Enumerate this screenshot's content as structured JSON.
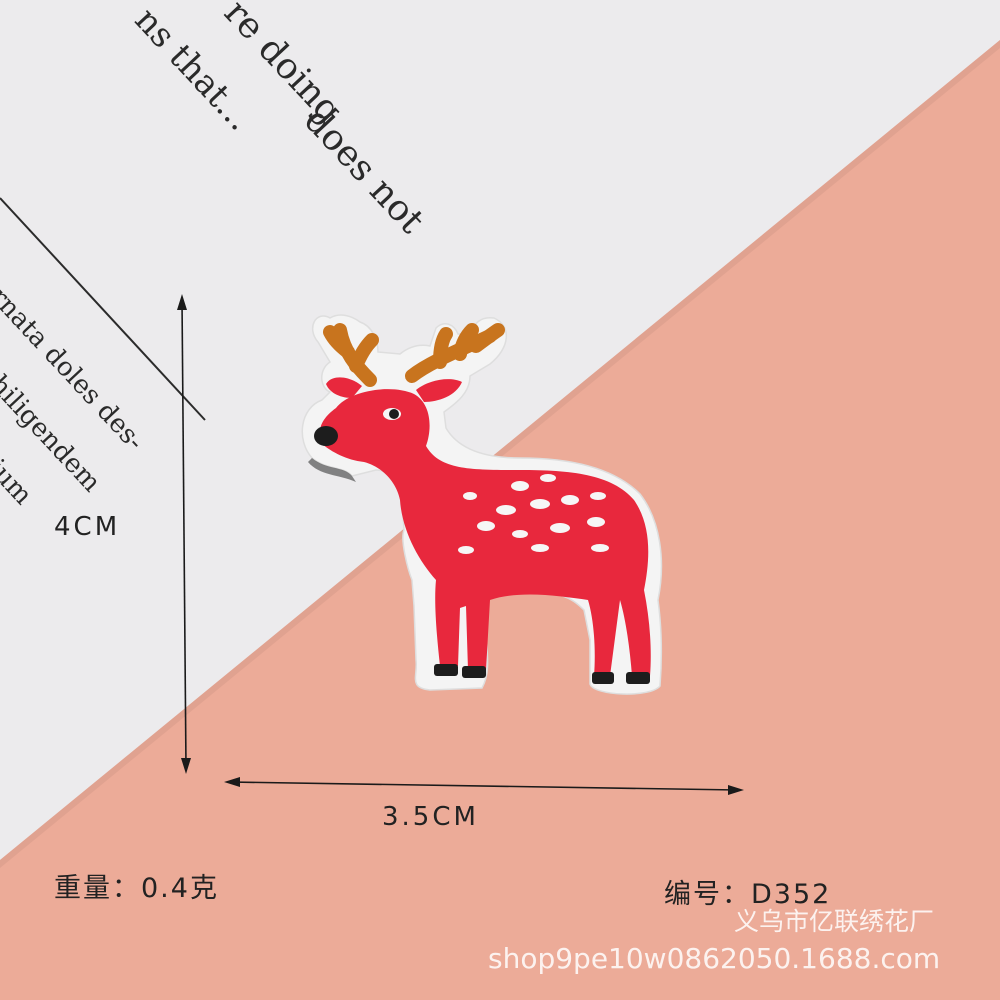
{
  "paper_text": {
    "line1": "re doing",
    "line2": "does not",
    "line3": "ns that...",
    "line4": "rnata doles des-",
    "line5": "hiligendem",
    "line6": "ium"
  },
  "dimensions": {
    "height_label": "4CM",
    "width_label": "3.5CM"
  },
  "product": {
    "weight_label": "重量：0.4克",
    "code_label": "编号：D352"
  },
  "watermark": {
    "company": "义乌市亿联绣花厂",
    "url": "shop9pe10w0862050.1688.com"
  },
  "colors": {
    "background_pink": "#ecab98",
    "paper_white": "#ebebec",
    "deer_red": "#e8283d",
    "antler_brown": "#c8741e"
  }
}
